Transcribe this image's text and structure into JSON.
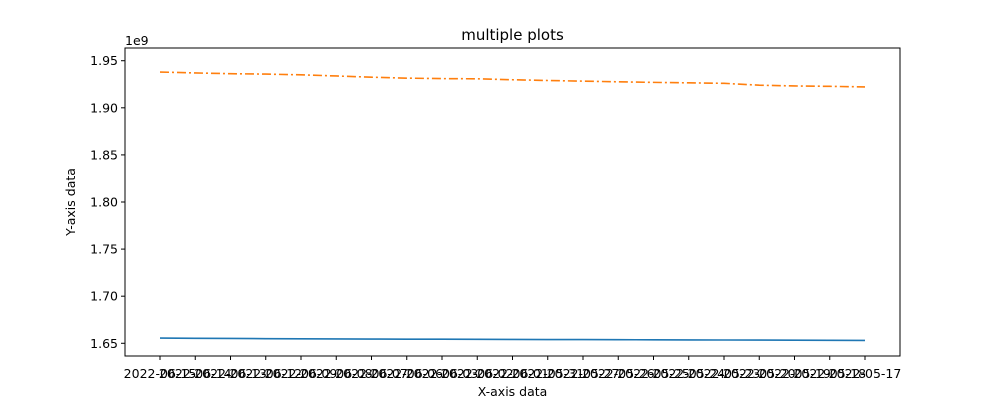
{
  "chart_data": {
    "type": "line",
    "title": "multiple plots",
    "xlabel": "X-axis data",
    "ylabel": "Y-axis data",
    "y_offset_text": "1e9",
    "x": [
      "2022-06-15",
      "2022-06-14",
      "2022-06-13",
      "2022-06-12",
      "2022-06-09",
      "2022-06-08",
      "2022-06-07",
      "2022-06-06",
      "2022-06-03",
      "2022-06-02",
      "2022-06-01",
      "2022-05-31",
      "2022-05-27",
      "2022-05-26",
      "2022-05-25",
      "2022-05-24",
      "2022-05-23",
      "2022-05-20",
      "2022-05-19",
      "2022-05-18",
      "2022-05-17"
    ],
    "x_tick_labels": [
      "2022-06-15",
      "2022-06-14",
      "2022-06-13",
      "2022-06-12",
      "2022-06-09",
      "2022-06-08",
      "2022-06-07",
      "2022-06-06",
      "2022-06-03",
      "2022-06-02",
      "2022-06-01",
      "2022-05-31",
      "2022-05-27",
      "2022-05-26",
      "2022-05-25",
      "2022-05-24",
      "2022-05-23",
      "2022-05-20",
      "2022-05-19",
      "2022-05-18",
      "2022-05-17"
    ],
    "ylim": [
      1.6365,
      1.9635
    ],
    "yticks": [
      1.65,
      1.7,
      1.75,
      1.8,
      1.85,
      1.9,
      1.95
    ],
    "ytick_labels": [
      "1.65",
      "1.70",
      "1.75",
      "1.80",
      "1.85",
      "1.90",
      "1.95"
    ],
    "grid": false,
    "series": [
      {
        "color": "#1f77b4",
        "style": "solid",
        "values": [
          1.6555,
          1.6553,
          1.6551,
          1.6549,
          1.6547,
          1.6546,
          1.6545,
          1.6544,
          1.6543,
          1.6542,
          1.6541,
          1.654,
          1.6539,
          1.6538,
          1.6537,
          1.6536,
          1.6535,
          1.6534,
          1.6533,
          1.6532,
          1.653
        ]
      },
      {
        "color": "#ff7f0e",
        "style": "dashdot",
        "values": [
          1.938,
          1.937,
          1.9362,
          1.9358,
          1.935,
          1.9338,
          1.9325,
          1.9315,
          1.931,
          1.9308,
          1.9298,
          1.929,
          1.9283,
          1.9276,
          1.927,
          1.9265,
          1.926,
          1.924,
          1.9232,
          1.9228,
          1.9222
        ]
      }
    ]
  }
}
